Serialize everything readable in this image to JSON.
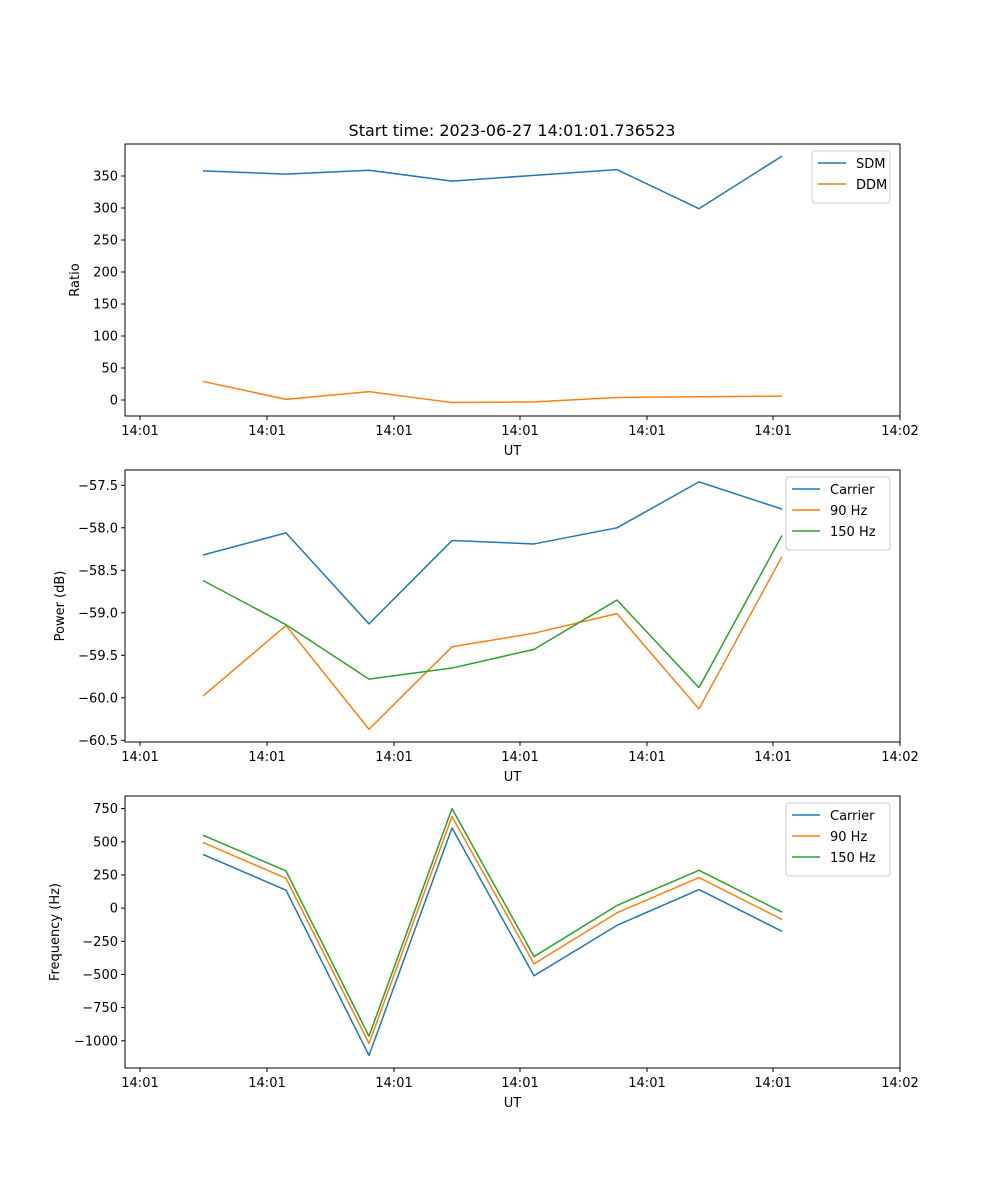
{
  "figure_title": "Start time: 2023-06-27 14:01:01.736523",
  "chart_data": [
    {
      "type": "line",
      "title": "Start time: 2023-06-27 14:01:01.736523",
      "xlabel": "UT",
      "ylabel": "Ratio",
      "x_tick_labels": [
        "14:01",
        "14:01",
        "14:01",
        "14:01",
        "14:01",
        "14:01",
        "14:02"
      ],
      "y_ticks": [
        0,
        50,
        100,
        150,
        200,
        250,
        300,
        350
      ],
      "y_tick_labels": [
        "0",
        "50",
        "100",
        "150",
        "200",
        "250",
        "300",
        "350"
      ],
      "ylim": [
        -25,
        400
      ],
      "grid": false,
      "legend": "top-right",
      "series": [
        {
          "name": "SDM",
          "color": "#1f77b4",
          "values": [
            358,
            353,
            359,
            342,
            351,
            360,
            299,
            381
          ]
        },
        {
          "name": "DDM",
          "color": "#ff7f0e",
          "values": [
            29,
            1,
            13,
            -4,
            -3,
            4,
            5,
            6
          ]
        }
      ]
    },
    {
      "type": "line",
      "title": "",
      "xlabel": "UT",
      "ylabel": "Power (dB)",
      "x_tick_labels": [
        "14:01",
        "14:01",
        "14:01",
        "14:01",
        "14:01",
        "14:01",
        "14:02"
      ],
      "y_ticks": [
        -60.5,
        -60.0,
        -59.5,
        -59.0,
        -58.5,
        -58.0,
        -57.5
      ],
      "y_tick_labels": [
        "−60.5",
        "−60.0",
        "−59.5",
        "−59.0",
        "−58.5",
        "−58.0",
        "−57.5"
      ],
      "ylim": [
        -60.52,
        -57.32
      ],
      "grid": false,
      "legend": "top-right",
      "series": [
        {
          "name": "Carrier",
          "color": "#1f77b4",
          "values": [
            -58.32,
            -58.06,
            -59.13,
            -58.15,
            -58.19,
            -58.0,
            -57.46,
            -57.78
          ]
        },
        {
          "name": "90 Hz",
          "color": "#ff7f0e",
          "values": [
            -59.98,
            -59.15,
            -60.37,
            -59.4,
            -59.24,
            -59.01,
            -60.13,
            -58.34
          ]
        },
        {
          "name": "150 Hz",
          "color": "#2ca02c",
          "values": [
            -58.62,
            -59.14,
            -59.78,
            -59.65,
            -59.43,
            -58.85,
            -59.88,
            -58.09
          ]
        }
      ]
    },
    {
      "type": "line",
      "title": "",
      "xlabel": "UT",
      "ylabel": "Frequency (Hz)",
      "x_tick_labels": [
        "14:01",
        "14:01",
        "14:01",
        "14:01",
        "14:01",
        "14:01",
        "14:02"
      ],
      "y_ticks": [
        -1000,
        -750,
        -500,
        -250,
        0,
        250,
        500,
        750
      ],
      "y_tick_labels": [
        "−1000",
        "−750",
        "−500",
        "−250",
        "0",
        "250",
        "500",
        "750"
      ],
      "ylim": [
        -1205,
        845
      ],
      "grid": false,
      "legend": "top-right",
      "series": [
        {
          "name": "Carrier",
          "color": "#1f77b4",
          "values": [
            405,
            135,
            -1110,
            605,
            -510,
            -130,
            140,
            -175
          ]
        },
        {
          "name": "90 Hz",
          "color": "#ff7f0e",
          "values": [
            495,
            225,
            -1020,
            690,
            -420,
            -35,
            230,
            -85
          ]
        },
        {
          "name": "150 Hz",
          "color": "#2ca02c",
          "values": [
            550,
            280,
            -965,
            750,
            -365,
            20,
            285,
            -30
          ]
        }
      ]
    }
  ]
}
